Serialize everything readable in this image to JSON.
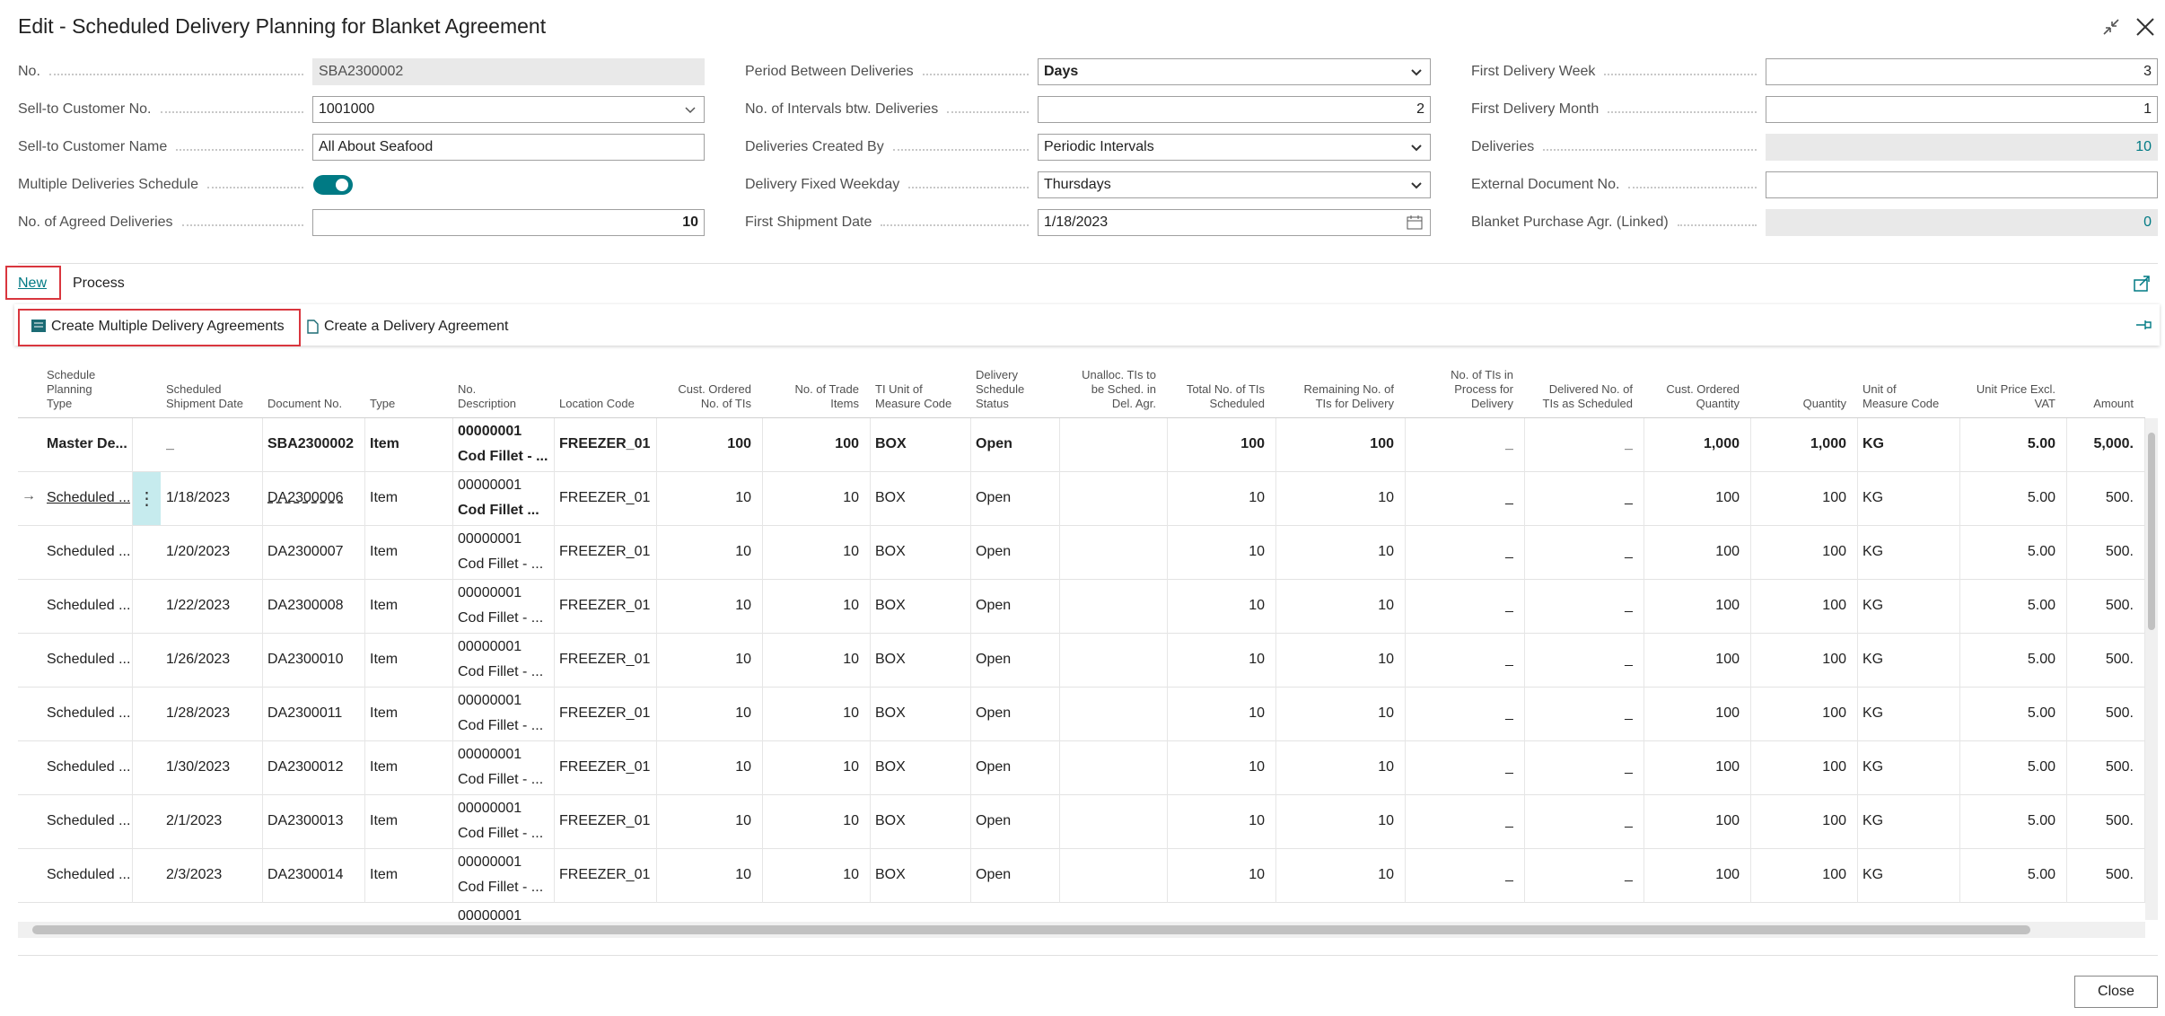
{
  "header": {
    "title": "Edit - Scheduled Delivery Planning for Blanket Agreement"
  },
  "fields": [
    [
      {
        "label": "No.",
        "value": "SBA2300002"
      },
      {
        "label": "Sell-to Customer No.",
        "value": "1001000"
      },
      {
        "label": "Sell-to Customer Name",
        "value": "All About Seafood"
      },
      {
        "label": "Multiple Deliveries Schedule",
        "value": true
      },
      {
        "label": "No. of Agreed Deliveries",
        "value": "10"
      }
    ],
    [
      {
        "label": "Period Between Deliveries",
        "value": "Days"
      },
      {
        "label": "No. of Intervals btw. Deliveries",
        "value": "2"
      },
      {
        "label": "Deliveries Created By",
        "value": "Periodic Intervals"
      },
      {
        "label": "Delivery Fixed Weekday",
        "value": "Thursdays"
      },
      {
        "label": "First Shipment Date",
        "value": "1/18/2023"
      }
    ],
    [
      {
        "label": "First Delivery Week",
        "value": "3"
      },
      {
        "label": "First Delivery Month",
        "value": "1"
      },
      {
        "label": "Deliveries",
        "value": "10"
      },
      {
        "label": "External Document No."
      },
      {
        "label": "Blanket Purchase Agr. (Linked)",
        "value": "0"
      }
    ]
  ],
  "tabs": [
    "New",
    "Process"
  ],
  "actions": [
    "Create Multiple Delivery Agreements",
    "Create a Delivery Agreement"
  ],
  "table": {
    "headers": [
      "Schedule\nPlanning\nType",
      "Scheduled\nShipment Date",
      "Document No.",
      "Type",
      "No.\nDescription",
      "Location Code",
      "Cust. Ordered\nNo. of TIs",
      "No. of Trade\nItems",
      "TI Unit of\nMeasure Code",
      "Delivery\nSchedule\nStatus",
      "Unalloc. TIs to\nbe Sched. in\nDel. Agr.",
      "Total No. of TIs\nScheduled",
      "Remaining No. of\nTIs for Delivery",
      "No. of TIs in\nProcess for\nDelivery",
      "Delivered No. of\nTIs as Scheduled",
      "Cust. Ordered\nQuantity",
      "Quantity",
      "Unit of\nMeasure Code",
      "Unit Price Excl.\nVAT",
      "Amount"
    ],
    "master_row": [
      "Master De...",
      "_",
      "SBA2300002",
      "Item",
      "00000001",
      "Cod Fillet - ...",
      "FREEZER_01",
      "100",
      "100",
      "BOX",
      "Open",
      null,
      "100",
      "100",
      "_",
      "_",
      "1,000",
      "1,000",
      "KG",
      "5.00",
      "5,000."
    ],
    "rows": [
      [
        "Scheduled ...",
        "1/18/2023",
        "DA2300006",
        "Item",
        "00000001",
        "Cod Fillet ...",
        "FREEZER_01",
        "10",
        "10",
        "BOX",
        "Open",
        null,
        "10",
        "10",
        "_",
        "_",
        "100",
        "100",
        "KG",
        "5.00",
        "500."
      ],
      [
        "Scheduled ...",
        "1/20/2023",
        "DA2300007",
        "Item",
        "00000001",
        "Cod Fillet - ...",
        "FREEZER_01",
        "10",
        "10",
        "BOX",
        "Open",
        null,
        "10",
        "10",
        "_",
        "_",
        "100",
        "100",
        "KG",
        "5.00",
        "500."
      ],
      [
        "Scheduled ...",
        "1/22/2023",
        "DA2300008",
        "Item",
        "00000001",
        "Cod Fillet - ...",
        "FREEZER_01",
        "10",
        "10",
        "BOX",
        "Open",
        null,
        "10",
        "10",
        "_",
        "_",
        "100",
        "100",
        "KG",
        "5.00",
        "500."
      ],
      [
        "Scheduled ...",
        "1/26/2023",
        "DA2300010",
        "Item",
        "00000001",
        "Cod Fillet - ...",
        "FREEZER_01",
        "10",
        "10",
        "BOX",
        "Open",
        null,
        "10",
        "10",
        "_",
        "_",
        "100",
        "100",
        "KG",
        "5.00",
        "500."
      ],
      [
        "Scheduled ...",
        "1/28/2023",
        "DA2300011",
        "Item",
        "00000001",
        "Cod Fillet - ...",
        "FREEZER_01",
        "10",
        "10",
        "BOX",
        "Open",
        null,
        "10",
        "10",
        "_",
        "_",
        "100",
        "100",
        "KG",
        "5.00",
        "500."
      ],
      [
        "Scheduled ...",
        "1/30/2023",
        "DA2300012",
        "Item",
        "00000001",
        "Cod Fillet - ...",
        "FREEZER_01",
        "10",
        "10",
        "BOX",
        "Open",
        null,
        "10",
        "10",
        "_",
        "_",
        "100",
        "100",
        "KG",
        "5.00",
        "500."
      ],
      [
        "Scheduled ...",
        "2/1/2023",
        "DA2300013",
        "Item",
        "00000001",
        "Cod Fillet - ...",
        "FREEZER_01",
        "10",
        "10",
        "BOX",
        "Open",
        null,
        "10",
        "10",
        "_",
        "_",
        "100",
        "100",
        "KG",
        "5.00",
        "500."
      ],
      [
        "Scheduled ...",
        "2/3/2023",
        "DA2300014",
        "Item",
        "00000001",
        "Cod Fillet - ...",
        "FREEZER_01",
        "10",
        "10",
        "BOX",
        "Open",
        null,
        "10",
        "10",
        "_",
        "_",
        "100",
        "100",
        "KG",
        "5.00",
        "500."
      ]
    ],
    "partial_row_no": "00000001"
  },
  "footer": {
    "close": "Close"
  }
}
